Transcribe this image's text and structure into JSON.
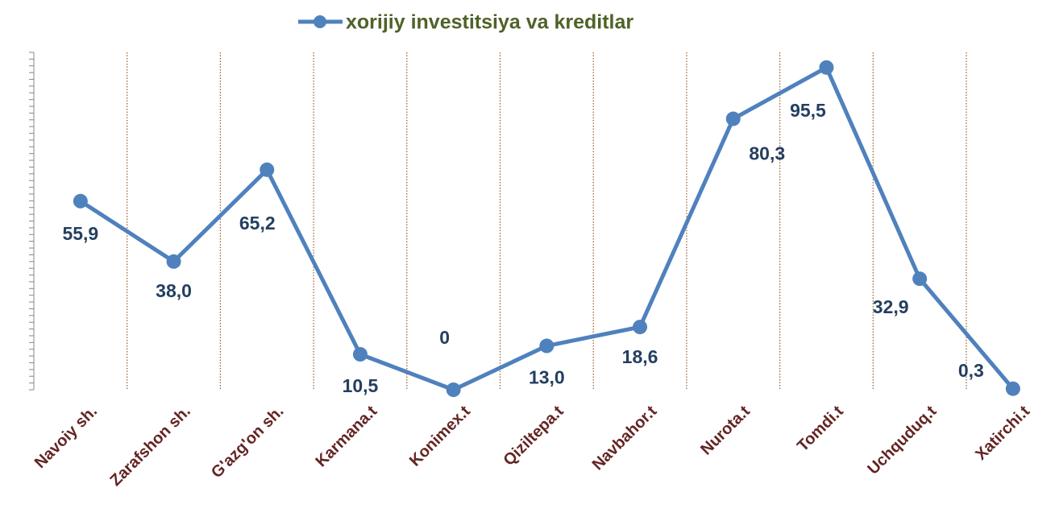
{
  "chart_data": {
    "type": "line",
    "categories": [
      "Navoiy sh.",
      "Zarafshon sh.",
      "G'azg'on sh.",
      "Karmana.t",
      "Konimex.t",
      "Qiziltepa.t",
      "Navbahor.t",
      "Nurota.t",
      "Tomdi.t",
      "Uchquduq.t",
      "Xatirchi.t"
    ],
    "series": [
      {
        "name": "xorijiy investitsiya va kreditlar",
        "color": "#4f81bd",
        "values": [
          55.9,
          38.0,
          65.2,
          10.5,
          0,
          13.0,
          18.6,
          80.3,
          95.5,
          32.9,
          0.3
        ],
        "value_labels": [
          "55,9",
          "38,0",
          "65,2",
          "10,5",
          "0",
          "13,0",
          "18,6",
          "80,3",
          "95,5",
          "32,9",
          "0,3"
        ]
      }
    ],
    "ylim": [
      0,
      100
    ],
    "yticks": [
      0,
      2,
      4,
      6,
      8,
      10,
      12,
      14,
      16,
      18,
      20,
      22,
      24,
      26,
      28,
      30,
      32,
      34,
      36,
      38,
      40,
      42,
      44,
      46,
      48,
      50,
      52,
      54,
      56,
      58,
      60,
      62,
      64,
      66,
      68,
      70,
      72,
      74,
      76,
      78,
      80,
      82,
      84,
      86,
      88,
      90,
      92,
      94,
      96,
      98,
      100
    ],
    "legend": "top"
  }
}
